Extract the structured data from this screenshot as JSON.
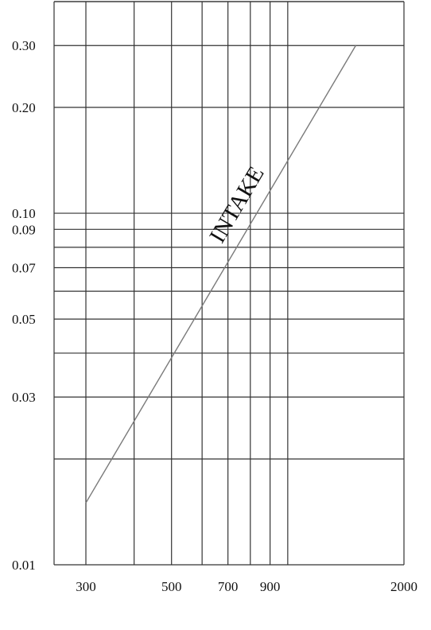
{
  "chart_data": {
    "type": "line",
    "title": "",
    "xlabel": "",
    "ylabel": "",
    "x_scale": "log",
    "y_scale": "log",
    "xlim": [
      300,
      2000
    ],
    "ylim": [
      0.01,
      0.4
    ],
    "grid": true,
    "x_gridlines": [
      300,
      400,
      500,
      600,
      700,
      800,
      900,
      1000,
      2000
    ],
    "y_gridlines": [
      0.01,
      0.02,
      0.03,
      0.04,
      0.05,
      0.06,
      0.07,
      0.08,
      0.09,
      0.1,
      0.2,
      0.3,
      0.4
    ],
    "x_tick_labels": [
      {
        "value": 300,
        "label": "300"
      },
      {
        "value": 500,
        "label": "500"
      },
      {
        "value": 700,
        "label": "700"
      },
      {
        "value": 900,
        "label": "900"
      },
      {
        "value": 2000,
        "label": "2000"
      }
    ],
    "y_tick_labels": [
      {
        "value": 0.01,
        "label": "0.01"
      },
      {
        "value": 0.03,
        "label": "0.03"
      },
      {
        "value": 0.05,
        "label": "0.05"
      },
      {
        "value": 0.07,
        "label": "0.07"
      },
      {
        "value": 0.09,
        "label": "0.09"
      },
      {
        "value": 0.1,
        "label": "0.10"
      },
      {
        "value": 0.2,
        "label": "0.20"
      },
      {
        "value": 0.3,
        "label": "0.30"
      }
    ],
    "series": [
      {
        "name": "INTAKE",
        "x": [
          300,
          1500
        ],
        "y": [
          0.015,
          0.3
        ]
      }
    ],
    "colors": {
      "grid": "#333333",
      "line": "#7a7a7a",
      "text": "#111111"
    }
  }
}
